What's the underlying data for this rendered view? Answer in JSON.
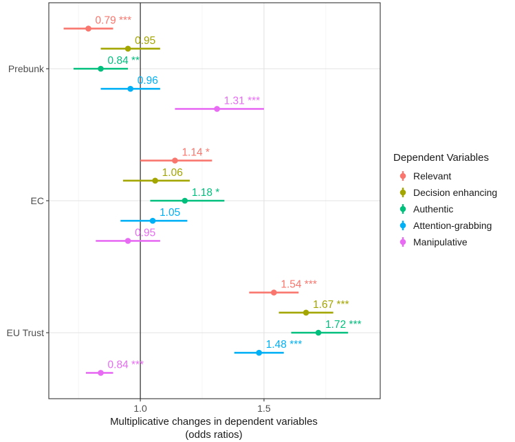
{
  "chart_data": {
    "type": "forest",
    "xlabel": [
      "Multiplicative changes in dependent variables",
      "(odds ratios)"
    ],
    "ylabel": "",
    "xlim": [
      0.63,
      1.97
    ],
    "x_ticks": [
      "1.0",
      "1.5"
    ],
    "x_tick_values": [
      1.0,
      1.5
    ],
    "reference_line": 1.0,
    "categories": [
      "Prebunk",
      "EC",
      "EU Trust"
    ],
    "legend": {
      "title": "Dependent Variables",
      "position": "right"
    },
    "series": [
      {
        "name": "Relevant",
        "color": "#F8766D",
        "points": [
          {
            "estimate": 0.79,
            "low": 0.69,
            "high": 0.89,
            "label": "0.79 ***"
          },
          {
            "estimate": 1.14,
            "low": 1.0,
            "high": 1.29,
            "label": "1.14 *"
          },
          {
            "estimate": 1.54,
            "low": 1.44,
            "high": 1.64,
            "label": "1.54 ***"
          }
        ]
      },
      {
        "name": "Decision enhancing",
        "color": "#A3A500",
        "points": [
          {
            "estimate": 0.95,
            "low": 0.84,
            "high": 1.08,
            "label": "0.95"
          },
          {
            "estimate": 1.06,
            "low": 0.93,
            "high": 1.2,
            "label": "1.06"
          },
          {
            "estimate": 1.67,
            "low": 1.56,
            "high": 1.78,
            "label": "1.67 ***"
          }
        ]
      },
      {
        "name": "Authentic",
        "color": "#00BF7D",
        "points": [
          {
            "estimate": 0.84,
            "low": 0.73,
            "high": 0.95,
            "label": "0.84 **"
          },
          {
            "estimate": 1.18,
            "low": 1.04,
            "high": 1.34,
            "label": "1.18 *"
          },
          {
            "estimate": 1.72,
            "low": 1.61,
            "high": 1.84,
            "label": "1.72 ***"
          }
        ]
      },
      {
        "name": "Attention-grabbing",
        "color": "#00B0F6",
        "points": [
          {
            "estimate": 0.96,
            "low": 0.84,
            "high": 1.08,
            "label": "0.96"
          },
          {
            "estimate": 1.05,
            "low": 0.92,
            "high": 1.19,
            "label": "1.05"
          },
          {
            "estimate": 1.48,
            "low": 1.38,
            "high": 1.58,
            "label": "1.48 ***"
          }
        ]
      },
      {
        "name": "Manipulative",
        "color": "#E76BF3",
        "points": [
          {
            "estimate": 1.31,
            "low": 1.14,
            "high": 1.5,
            "label": "1.31 ***"
          },
          {
            "estimate": 0.95,
            "low": 0.82,
            "high": 1.08,
            "label": "0.95"
          },
          {
            "estimate": 0.84,
            "low": 0.78,
            "high": 0.89,
            "label": "0.84 ***"
          }
        ]
      }
    ]
  }
}
